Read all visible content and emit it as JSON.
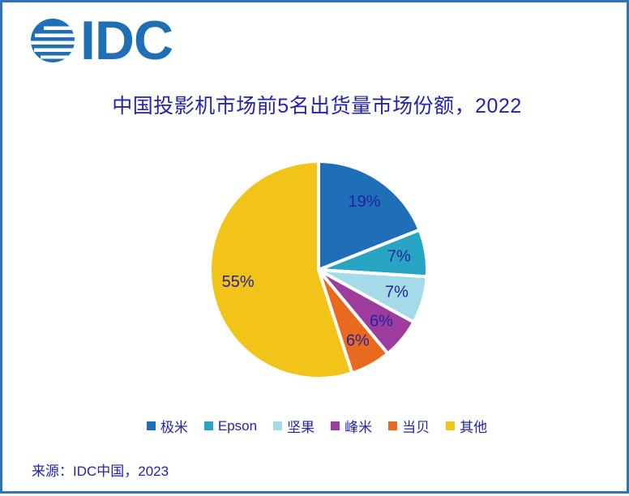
{
  "logo": {
    "text": "IDC",
    "color": "#1E6FB5"
  },
  "title": {
    "text": "中国投影机市场前5名出货量市场份额，2022",
    "color": "#2323AC"
  },
  "source": {
    "text": "来源：IDC中国，2023"
  },
  "page": {
    "border_color": "#2E74B5",
    "background": "#FFFFFF",
    "text_navy": "#2323AC"
  },
  "chart_data": {
    "type": "pie",
    "title": "中国投影机市场前5名出货量市场份额，2022",
    "categories": [
      "极米",
      "Epson",
      "坚果",
      "峰米",
      "当贝",
      "其他"
    ],
    "values": [
      19,
      7,
      7,
      6,
      6,
      55
    ],
    "data_labels": [
      "19%",
      "7%",
      "7%",
      "6%",
      "6%",
      "55%"
    ],
    "unit": "%",
    "slice_colors": [
      "#1F6FB8",
      "#29A5C4",
      "#A5DBE8",
      "#9D3C9C",
      "#E96A1F",
      "#F2C318"
    ],
    "label_color": "#22229E",
    "start_angle_deg": 0,
    "direction": "clockwise",
    "slice_gap": "white",
    "legend_position": "bottom"
  }
}
